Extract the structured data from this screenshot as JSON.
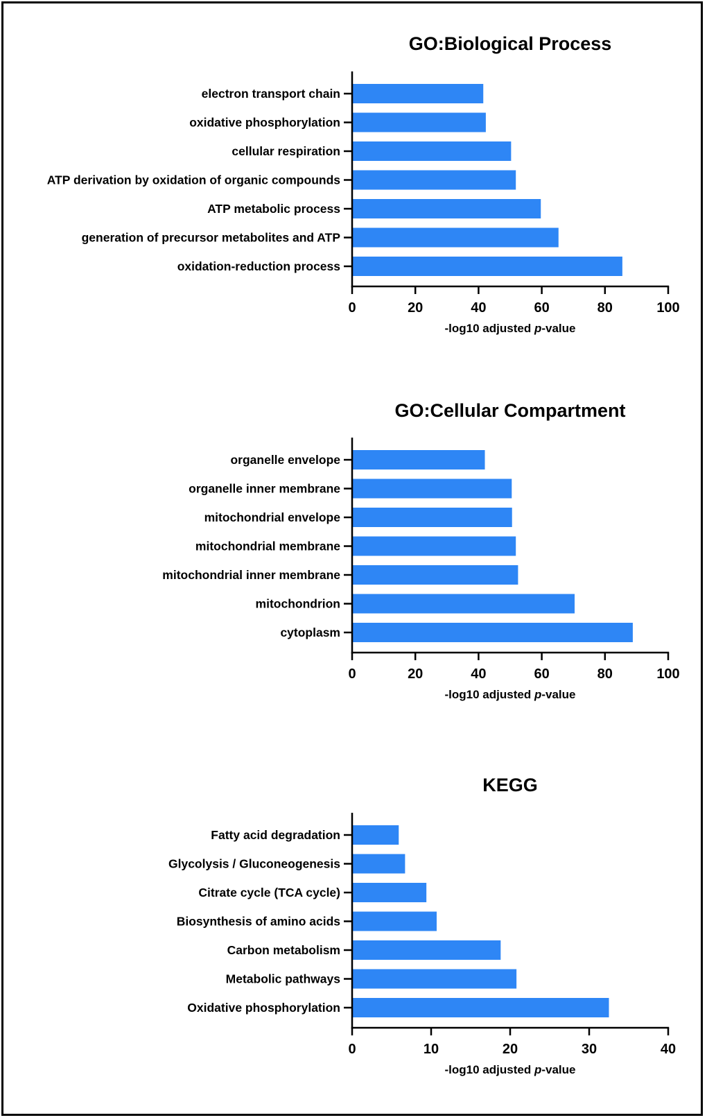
{
  "chart_data": [
    {
      "type": "bar",
      "orientation": "horizontal",
      "title": "GO:Biological Process",
      "categories": [
        "electron transport chain",
        "oxidative phosphorylation",
        "cellular respiration",
        "ATP derivation by oxidation of organic compounds",
        "ATP metabolic process",
        "generation of precursor metabolites and ATP",
        "oxidation-reduction process"
      ],
      "values": [
        41.5,
        42.3,
        50.3,
        51.8,
        59.7,
        65.3,
        85.5
      ],
      "xlabel_prefix": "-log10 adjusted ",
      "xlabel_italic": "p",
      "xlabel_suffix": "-value",
      "xlim": [
        0,
        100
      ],
      "ticks": [
        0,
        20,
        40,
        60,
        80,
        100
      ],
      "bar_color": "#2e86f5",
      "grid": false
    },
    {
      "type": "bar",
      "orientation": "horizontal",
      "title": "GO:Cellular Compartment",
      "categories": [
        "organelle envelope",
        "organelle inner membrane",
        "mitochondrial envelope",
        "mitochondrial membrane",
        "mitochondrial inner membrane",
        "mitochondrion",
        "cytoplasm"
      ],
      "values": [
        42.0,
        50.5,
        50.6,
        51.8,
        52.5,
        70.4,
        88.8
      ],
      "xlabel_prefix": "-log10 adjusted ",
      "xlabel_italic": "p",
      "xlabel_suffix": "-value",
      "xlim": [
        0,
        100
      ],
      "ticks": [
        0,
        20,
        40,
        60,
        80,
        100
      ],
      "bar_color": "#2e86f5",
      "grid": false
    },
    {
      "type": "bar",
      "orientation": "horizontal",
      "title": "KEGG",
      "categories": [
        "Fatty acid degradation",
        "Glycolysis / Gluconeogenesis",
        "Citrate cycle (TCA cycle)",
        "Biosynthesis of amino acids",
        "Carbon metabolism",
        "Metabolic pathways",
        "Oxidative phosphorylation"
      ],
      "values": [
        5.9,
        6.7,
        9.4,
        10.7,
        18.8,
        20.8,
        32.5
      ],
      "xlabel_prefix": "-log10 adjusted ",
      "xlabel_italic": "p",
      "xlabel_suffix": "-value",
      "xlim": [
        0,
        40
      ],
      "ticks": [
        0,
        10,
        20,
        30,
        40
      ],
      "bar_color": "#2e86f5",
      "grid": false
    }
  ]
}
